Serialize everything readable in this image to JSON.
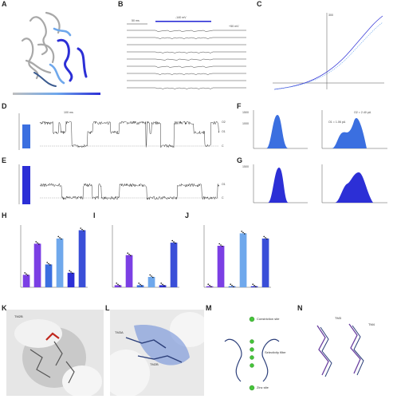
{
  "panels": {
    "A": "A",
    "B": "B",
    "C": "C",
    "D": "D",
    "E": "E",
    "F": "F",
    "G": "G",
    "H": "H",
    "I": "I",
    "J": "J",
    "K": "K",
    "L": "L",
    "M": "M",
    "N": "N"
  },
  "colors": {
    "blue_dark": "#2c2fd6",
    "blue_mid": "#3b6fe0",
    "blue_light": "#6fa8ec",
    "purple": "#7b3fe4",
    "steel": "#3a5a8f",
    "grey": "#bfbfbf",
    "red": "#c0281e",
    "green": "#45c43a"
  },
  "panel_b": {
    "scale_time": "50 ms",
    "voltage": "-140 mV",
    "v_high": "+50 mV"
  },
  "panel_c": {
    "top_label": "300"
  },
  "panel_d": {
    "scale": "100 ms",
    "state_labels": [
      "O2",
      "O1",
      "C"
    ]
  },
  "panel_e": {
    "state_labels": [
      "O1",
      "C"
    ]
  },
  "panel_f": {
    "left_y_ticks": [
      "1500",
      "1000",
      "500"
    ],
    "right_annotations": [
      "O1 = 1.06 pA",
      "O2 = 2.40 pA"
    ]
  },
  "panel_g": {
    "left_y_ticks": [
      "1500",
      "1000",
      "500"
    ]
  },
  "panel_k": {
    "label": "TM2B"
  },
  "panel_l": {
    "labels": [
      "TM3A",
      "TM2B"
    ]
  },
  "panel_m": {
    "legend": [
      "Constriction site",
      "Zinc site"
    ],
    "label_selectivity": "Selectivity filter"
  },
  "panel_n": {
    "labels": [
      "TM3",
      "TM4"
    ]
  },
  "chart_data": [
    {
      "type": "bar",
      "panel": "H",
      "ylim": [
        0,
        0.6
      ],
      "series": [
        {
          "values": [
            0.12,
            0.42,
            0.22,
            0.47,
            0.14,
            0.55
          ]
        }
      ]
    },
    {
      "type": "bar",
      "panel": "I",
      "ylim": [
        0,
        0.6
      ],
      "series": [
        {
          "values": [
            0.02,
            0.31,
            0.02,
            0.1,
            0.02,
            0.43
          ]
        }
      ]
    },
    {
      "type": "bar",
      "panel": "J",
      "ylim": [
        0,
        0.6
      ],
      "series": [
        {
          "values": [
            0.01,
            0.4,
            0.01,
            0.52,
            0.01,
            0.47
          ]
        }
      ]
    }
  ]
}
